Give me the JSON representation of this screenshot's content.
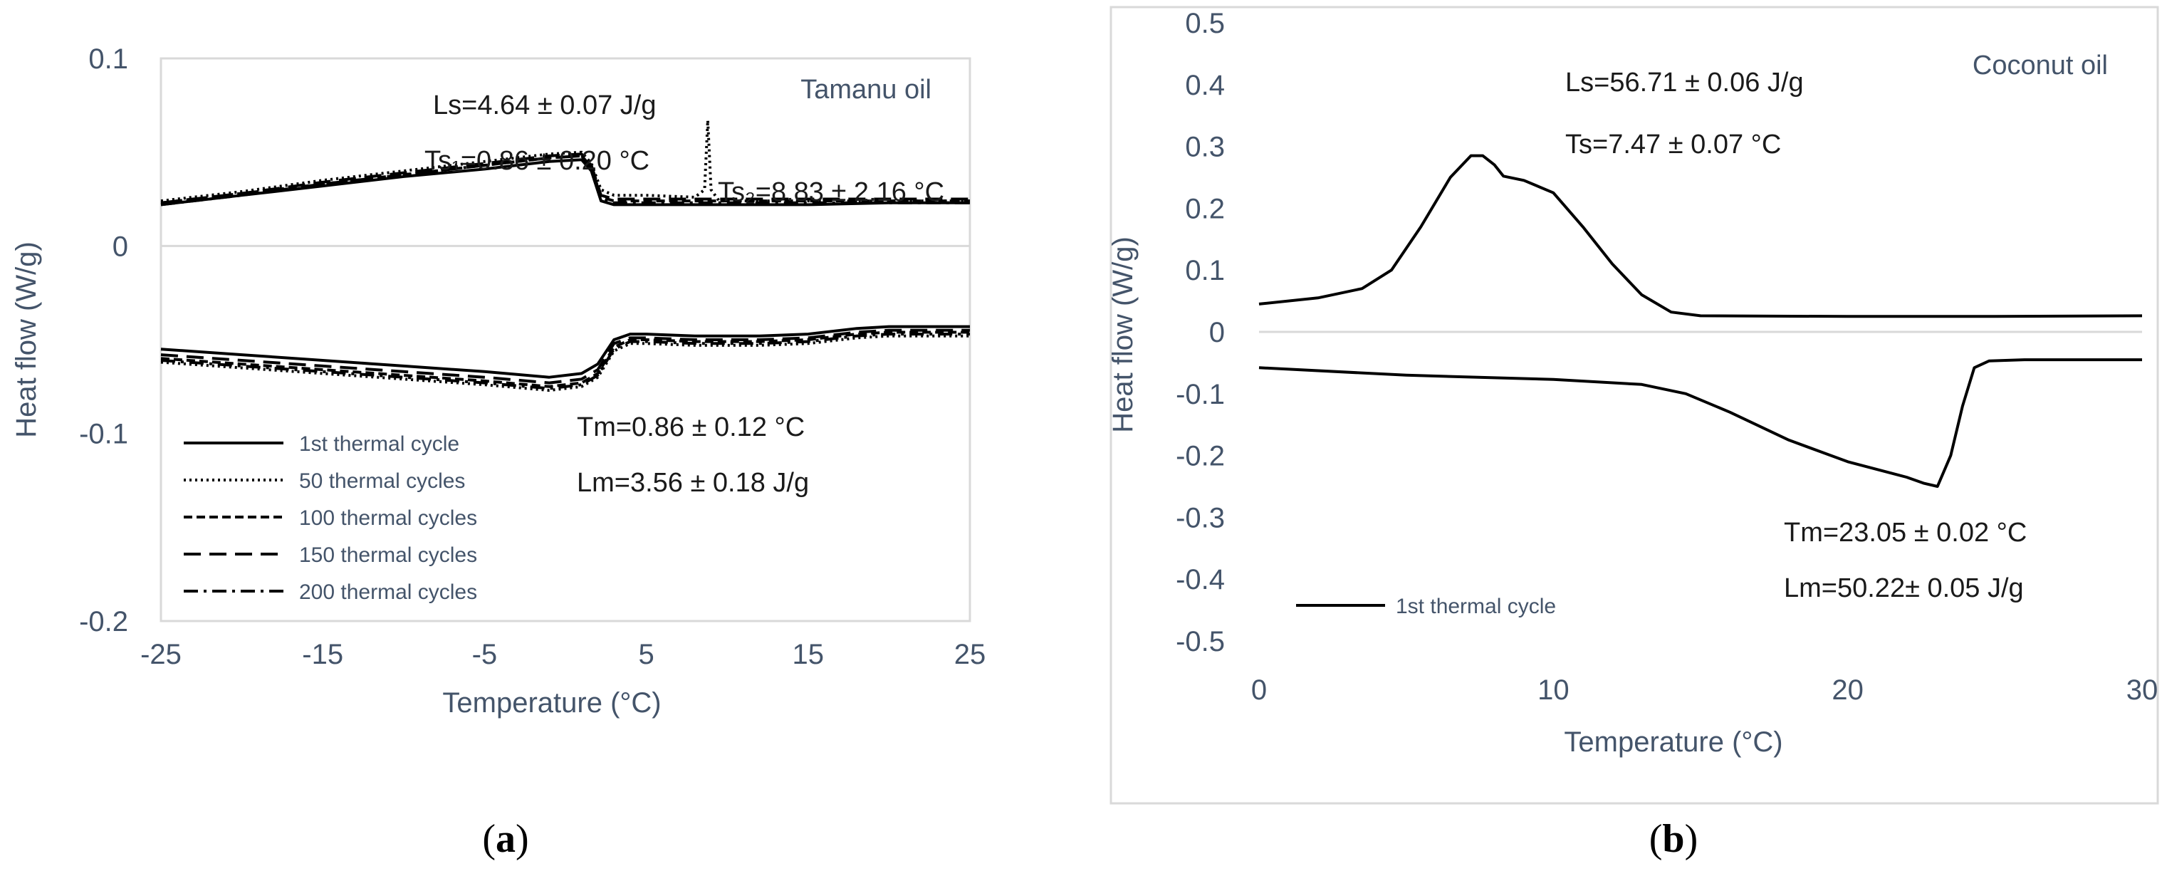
{
  "chart_data": [
    {
      "type": "line",
      "panel_label": "a",
      "chart_label": "Tamanu oil",
      "xlabel": "Temperature  (°C)",
      "ylabel": "Heat flow (W/g)",
      "xlim": [
        -25,
        25
      ],
      "ylim": [
        -0.2,
        0.1
      ],
      "x_ticks": [
        "-25",
        "-15",
        "-5",
        "5",
        "15",
        "25"
      ],
      "x_tick_values": [
        -25,
        -15,
        -5,
        5,
        15,
        25
      ],
      "y_ticks": [
        "0.1",
        "0",
        "-0.1",
        "-0.2"
      ],
      "y_tick_values": [
        0.1,
        0,
        -0.1,
        -0.2
      ],
      "zero_line": true,
      "grid": false,
      "legend_position": "bottom-left",
      "annotations": {
        "ls": "Ls=4.64 ± 0.07 J/g",
        "ts1": "Ts₁=0.86 ± 0.20 °C",
        "ts2": "Ts₂=8.83 ± 2.16 °C",
        "tm": "Tm=0.86 ± 0.12  °C",
        "lm": "Lm=3.56 ± 0.18  J/g"
      },
      "series": [
        {
          "name": "1st thermal cycle",
          "dash": "solid",
          "segments": [
            {
              "x": [
                -25,
                -20,
                -15,
                -10,
                -5,
                -1,
                1,
                1.6,
                2.2,
                3,
                5,
                8,
                8.8,
                9.5,
                12,
                15,
                20,
                25
              ],
              "y": [
                0.022,
                0.027,
                0.032,
                0.037,
                0.041,
                0.045,
                0.046,
                0.04,
                0.024,
                0.022,
                0.022,
                0.022,
                0.022,
                0.022,
                0.022,
                0.022,
                0.023,
                0.023
              ]
            },
            {
              "x": [
                -25,
                -20,
                -15,
                -10,
                -5,
                -1,
                1,
                2,
                3,
                4,
                5,
                8,
                12,
                15,
                18,
                20,
                25
              ],
              "y": [
                -0.055,
                -0.058,
                -0.061,
                -0.064,
                -0.067,
                -0.07,
                -0.068,
                -0.063,
                -0.05,
                -0.047,
                -0.047,
                -0.048,
                -0.048,
                -0.047,
                -0.044,
                -0.043,
                -0.043
              ]
            }
          ]
        },
        {
          "name": "50 thermal cycles",
          "dash": "dotted",
          "segments": [
            {
              "x": [
                -25,
                -20,
                -15,
                -10,
                -5,
                -1,
                1,
                1.6,
                2.2,
                3,
                5,
                8,
                8.6,
                8.8,
                9.0,
                9.5,
                12,
                15,
                20,
                25
              ],
              "y": [
                0.024,
                0.029,
                0.035,
                0.04,
                0.045,
                0.049,
                0.05,
                0.044,
                0.03,
                0.027,
                0.027,
                0.026,
                0.03,
                0.067,
                0.03,
                0.024,
                0.024,
                0.024,
                0.024,
                0.024
              ]
            },
            {
              "x": [
                -25,
                -20,
                -15,
                -10,
                -5,
                -1,
                1,
                2,
                3,
                4,
                5,
                8,
                12,
                15,
                18,
                20,
                25
              ],
              "y": [
                -0.062,
                -0.065,
                -0.068,
                -0.071,
                -0.074,
                -0.077,
                -0.075,
                -0.07,
                -0.056,
                -0.052,
                -0.052,
                -0.053,
                -0.053,
                -0.052,
                -0.049,
                -0.048,
                -0.048
              ]
            }
          ]
        },
        {
          "name": "100 thermal cycles",
          "dash": "short-dash",
          "segments": [
            {
              "x": [
                -25,
                -20,
                -15,
                -10,
                -5,
                -1,
                1,
                1.6,
                2.2,
                3,
                5,
                8,
                12,
                15,
                20,
                25
              ],
              "y": [
                0.023,
                0.028,
                0.033,
                0.038,
                0.043,
                0.047,
                0.048,
                0.042,
                0.026,
                0.024,
                0.024,
                0.024,
                0.024,
                0.024,
                0.024,
                0.024
              ]
            },
            {
              "x": [
                -25,
                -20,
                -15,
                -10,
                -5,
                -1,
                1,
                2,
                3,
                4,
                5,
                8,
                12,
                15,
                18,
                20,
                25
              ],
              "y": [
                -0.06,
                -0.063,
                -0.066,
                -0.069,
                -0.072,
                -0.075,
                -0.073,
                -0.068,
                -0.054,
                -0.05,
                -0.05,
                -0.051,
                -0.051,
                -0.05,
                -0.047,
                -0.046,
                -0.046
              ]
            }
          ]
        },
        {
          "name": "150 thermal cycles",
          "dash": "long-dash",
          "segments": [
            {
              "x": [
                -25,
                -20,
                -15,
                -10,
                -5,
                -1,
                1,
                1.6,
                2.2,
                3,
                5,
                8,
                12,
                15,
                20,
                25
              ],
              "y": [
                0.023,
                0.028,
                0.034,
                0.039,
                0.044,
                0.048,
                0.049,
                0.043,
                0.027,
                0.025,
                0.025,
                0.025,
                0.025,
                0.025,
                0.025,
                0.025
              ]
            },
            {
              "x": [
                -25,
                -20,
                -15,
                -10,
                -5,
                -1,
                1,
                2,
                3,
                4,
                5,
                8,
                12,
                15,
                18,
                20,
                25
              ],
              "y": [
                -0.058,
                -0.061,
                -0.064,
                -0.067,
                -0.07,
                -0.073,
                -0.071,
                -0.066,
                -0.052,
                -0.049,
                -0.049,
                -0.05,
                -0.05,
                -0.049,
                -0.046,
                -0.045,
                -0.045
              ]
            }
          ]
        },
        {
          "name": "200 thermal cycles",
          "dash": "dash-dot",
          "segments": [
            {
              "x": [
                -25,
                -20,
                -15,
                -10,
                -5,
                -1,
                1,
                1.6,
                2.2,
                3,
                5,
                8,
                12,
                15,
                20,
                25
              ],
              "y": [
                0.022,
                0.027,
                0.033,
                0.038,
                0.043,
                0.047,
                0.048,
                0.042,
                0.025,
                0.023,
                0.023,
                0.023,
                0.023,
                0.023,
                0.023,
                0.023
              ]
            },
            {
              "x": [
                -25,
                -20,
                -15,
                -10,
                -5,
                -1,
                1,
                2,
                3,
                4,
                5,
                8,
                12,
                15,
                18,
                20,
                25
              ],
              "y": [
                -0.061,
                -0.064,
                -0.067,
                -0.07,
                -0.073,
                -0.076,
                -0.074,
                -0.069,
                -0.055,
                -0.051,
                -0.051,
                -0.052,
                -0.052,
                -0.051,
                -0.048,
                -0.047,
                -0.047
              ]
            }
          ]
        }
      ]
    },
    {
      "type": "line",
      "panel_label": "b",
      "chart_label": "Coconut oil",
      "xlabel": "Temperature  (°C)",
      "ylabel": "Heat flow (W/g)",
      "xlim": [
        0,
        30
      ],
      "ylim": [
        -0.5,
        0.5
      ],
      "x_ticks": [
        "0",
        "10",
        "20",
        "30"
      ],
      "x_tick_values": [
        0,
        10,
        20,
        30
      ],
      "y_ticks": [
        "0.5",
        "0.4",
        "0.3",
        "0.2",
        "0.1",
        "0",
        "-0.1",
        "-0.2",
        "-0.3",
        "-0.4",
        "-0.5"
      ],
      "y_tick_values": [
        0.5,
        0.4,
        0.3,
        0.2,
        0.1,
        0,
        -0.1,
        -0.2,
        -0.3,
        -0.4,
        -0.5
      ],
      "zero_line": true,
      "grid": false,
      "legend_position": "bottom-left",
      "annotations": {
        "ls": "Ls=56.71 ± 0.06 J/g",
        "ts": "Ts=7.47 ± 0.07  °C",
        "tm": "Tm=23.05 ± 0.02 °C",
        "lm": "Lm=50.22± 0.05  J/g"
      },
      "series": [
        {
          "name": "1st thermal cycle",
          "dash": "solid",
          "segments": [
            {
              "x": [
                0,
                2,
                3.5,
                4.5,
                5.5,
                6.5,
                7.2,
                7.6,
                8.0,
                8.3,
                9,
                10,
                11,
                12,
                13,
                14,
                15,
                20,
                25,
                30
              ],
              "y": [
                0.045,
                0.055,
                0.07,
                0.1,
                0.17,
                0.25,
                0.285,
                0.285,
                0.27,
                0.252,
                0.245,
                0.225,
                0.17,
                0.11,
                0.06,
                0.032,
                0.026,
                0.025,
                0.025,
                0.026
              ]
            },
            {
              "x": [
                0,
                5,
                10,
                13,
                14.5,
                16,
                18,
                20,
                22,
                22.6,
                23.05,
                23.5,
                23.9,
                24.3,
                24.8,
                26,
                30
              ],
              "y": [
                -0.058,
                -0.07,
                -0.077,
                -0.085,
                -0.1,
                -0.13,
                -0.175,
                -0.21,
                -0.235,
                -0.245,
                -0.25,
                -0.2,
                -0.12,
                -0.058,
                -0.047,
                -0.045,
                -0.045
              ]
            }
          ]
        }
      ]
    }
  ]
}
